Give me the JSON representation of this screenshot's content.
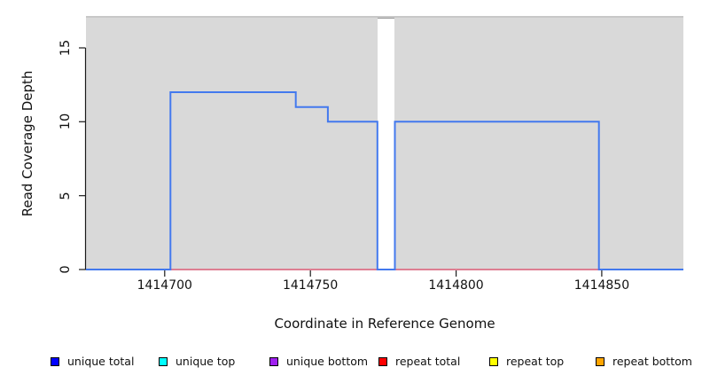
{
  "chart_data": {
    "type": "line",
    "subtype": "step-coverage",
    "xlabel": "Coordinate in Reference Genome",
    "ylabel": "Read Coverage Depth",
    "xlim": [
      1414673,
      1414878
    ],
    "ylim": [
      0,
      17.1
    ],
    "xticks": [
      "1414700",
      "1414750",
      "1414800",
      "1414850"
    ],
    "xtick_values": [
      1414700,
      1414750,
      1414800,
      1414850
    ],
    "yticks": [
      "0",
      "5",
      "10",
      "15"
    ],
    "ytick_values": [
      0,
      5,
      10,
      15
    ],
    "grid": false,
    "plot_background": "#d9d9d9",
    "figure_background": "#ffffff",
    "gap_region": {
      "x0": 1414773,
      "x1": 1414779
    },
    "series": [
      {
        "name": "unique total",
        "line_color": "#4379ee",
        "points": [
          [
            1414673,
            0
          ],
          [
            1414702,
            0
          ],
          [
            1414702,
            12
          ],
          [
            1414745,
            12
          ],
          [
            1414745,
            11
          ],
          [
            1414756,
            11
          ],
          [
            1414756,
            10
          ],
          [
            1414773,
            10
          ],
          [
            1414773,
            0
          ],
          [
            1414779,
            0
          ],
          [
            1414779,
            10
          ],
          [
            1414849,
            10
          ],
          [
            1414849,
            0
          ],
          [
            1414878,
            0
          ]
        ]
      },
      {
        "name": "repeat total",
        "line_color": "#e0607a",
        "points": [
          [
            1414673,
            0
          ],
          [
            1414878,
            0
          ]
        ]
      }
    ],
    "legend_position": "bottom",
    "legend": [
      {
        "label": "unique total",
        "color": "#0000ff"
      },
      {
        "label": "unique top",
        "color": "#00ffff"
      },
      {
        "label": "unique bottom",
        "color": "#a020f0"
      },
      {
        "label": "repeat total",
        "color": "#ff0000"
      },
      {
        "label": "repeat top",
        "color": "#ffff00"
      },
      {
        "label": "repeat bottom",
        "color": "#ffa500"
      }
    ]
  }
}
